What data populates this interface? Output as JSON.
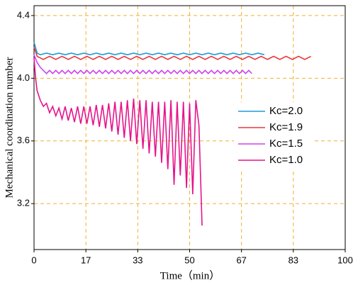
{
  "chart_data": {
    "type": "line",
    "xlabel": "Time（min）",
    "ylabel": "Mechanical coordination number",
    "xlim": [
      0,
      100
    ],
    "ylim": [
      2.907,
      4.463
    ],
    "xticks": [
      0,
      {
        "value": 16.67,
        "label": "17"
      },
      {
        "value": 33.33,
        "label": "33"
      },
      {
        "value": 50,
        "label": "50"
      },
      {
        "value": 66.67,
        "label": "67"
      },
      {
        "value": 83.33,
        "label": "83"
      },
      100
    ],
    "yticks": [
      3.2,
      3.6,
      {
        "value": 4,
        "label": "4.0"
      },
      4.4
    ],
    "grid": true,
    "legend": "right",
    "series": [
      {
        "name": "Kc=2.0",
        "color": "#1e9bd7",
        "x": [
          0,
          1,
          2,
          4,
          6,
          8,
          10,
          12,
          14,
          16,
          18,
          20,
          22,
          24,
          26,
          28,
          30,
          32,
          34,
          36,
          38,
          40,
          42,
          44,
          46,
          48,
          50,
          52,
          54,
          56,
          58,
          60,
          62,
          64,
          66,
          68,
          70,
          72,
          74
        ],
        "values": [
          4.23,
          4.16,
          4.15,
          4.16,
          4.15,
          4.16,
          4.15,
          4.16,
          4.15,
          4.16,
          4.15,
          4.16,
          4.15,
          4.16,
          4.15,
          4.16,
          4.15,
          4.16,
          4.15,
          4.16,
          4.15,
          4.16,
          4.15,
          4.16,
          4.15,
          4.16,
          4.15,
          4.16,
          4.15,
          4.16,
          4.15,
          4.16,
          4.15,
          4.16,
          4.15,
          4.16,
          4.15,
          4.16,
          4.15
        ]
      },
      {
        "name": "Kc=1.9",
        "color": "#e8383d",
        "x": [
          0,
          1,
          3,
          5,
          7,
          9,
          11,
          13,
          15,
          17,
          19,
          21,
          23,
          25,
          27,
          29,
          31,
          33,
          35,
          37,
          39,
          41,
          43,
          45,
          47,
          49,
          51,
          53,
          55,
          57,
          59,
          61,
          63,
          65,
          67,
          69,
          71,
          73,
          75,
          77,
          79,
          81,
          83,
          85,
          87,
          89
        ],
        "values": [
          4.2,
          4.14,
          4.12,
          4.14,
          4.12,
          4.14,
          4.12,
          4.14,
          4.12,
          4.14,
          4.12,
          4.14,
          4.12,
          4.14,
          4.12,
          4.14,
          4.12,
          4.14,
          4.12,
          4.14,
          4.12,
          4.14,
          4.12,
          4.14,
          4.12,
          4.14,
          4.12,
          4.14,
          4.12,
          4.14,
          4.12,
          4.14,
          4.12,
          4.14,
          4.12,
          4.14,
          4.12,
          4.14,
          4.12,
          4.14,
          4.12,
          4.14,
          4.12,
          4.14,
          4.12,
          4.14
        ]
      },
      {
        "name": "Kc=1.5",
        "color": "#cc44ee",
        "x": [
          0,
          1,
          2,
          3,
          4,
          5,
          6,
          7,
          8,
          9,
          10,
          11,
          12,
          13,
          14,
          15,
          16,
          17,
          18,
          19,
          20,
          21,
          22,
          23,
          24,
          25,
          26,
          27,
          28,
          29,
          30,
          31,
          32,
          33,
          34,
          35,
          36,
          37,
          38,
          39,
          40,
          41,
          42,
          43,
          44,
          45,
          46,
          47,
          48,
          49,
          50,
          51,
          52,
          53,
          54,
          55,
          56,
          57,
          58,
          59,
          60,
          61,
          62,
          63,
          64,
          65,
          66,
          67,
          68,
          69,
          70
        ],
        "values": [
          4.15,
          4.1,
          4.07,
          4.05,
          4.03,
          4.05,
          4.03,
          4.05,
          4.03,
          4.05,
          4.03,
          4.05,
          4.03,
          4.05,
          4.03,
          4.05,
          4.03,
          4.05,
          4.03,
          4.05,
          4.03,
          4.05,
          4.03,
          4.05,
          4.03,
          4.05,
          4.03,
          4.05,
          4.03,
          4.05,
          4.03,
          4.05,
          4.03,
          4.05,
          4.03,
          4.05,
          4.03,
          4.05,
          4.03,
          4.05,
          4.03,
          4.05,
          4.03,
          4.05,
          4.03,
          4.05,
          4.03,
          4.05,
          4.03,
          4.05,
          4.03,
          4.05,
          4.03,
          4.05,
          4.03,
          4.05,
          4.03,
          4.05,
          4.03,
          4.05,
          4.03,
          4.05,
          4.03,
          4.05,
          4.03,
          4.05,
          4.03,
          4.05,
          4.03,
          4.05,
          4.03
        ]
      },
      {
        "name": "Kc=1.0",
        "color": "#e6148c",
        "x": [
          0,
          0.5,
          1,
          2,
          3,
          4,
          5,
          6,
          7,
          8,
          9,
          10,
          11,
          12,
          13,
          14,
          15,
          16,
          17,
          18,
          19,
          20,
          21,
          22,
          23,
          24,
          25,
          26,
          27,
          28,
          29,
          30,
          31,
          32,
          33,
          34,
          35,
          36,
          37,
          38,
          39,
          40,
          41,
          42,
          43,
          44,
          45,
          46,
          47,
          48,
          49,
          50,
          51,
          52,
          53,
          54
        ],
        "values": [
          4.13,
          4.0,
          3.92,
          3.86,
          3.82,
          3.84,
          3.78,
          3.82,
          3.76,
          3.81,
          3.74,
          3.82,
          3.73,
          3.81,
          3.72,
          3.82,
          3.71,
          3.82,
          3.71,
          3.82,
          3.7,
          3.83,
          3.69,
          3.83,
          3.68,
          3.84,
          3.66,
          3.85,
          3.64,
          3.85,
          3.62,
          3.86,
          3.6,
          3.87,
          3.58,
          3.86,
          3.55,
          3.86,
          3.52,
          3.85,
          3.5,
          3.85,
          3.46,
          3.85,
          3.42,
          3.86,
          3.32,
          3.85,
          3.38,
          3.85,
          3.3,
          3.84,
          3.26,
          3.86,
          3.7,
          3.06
        ]
      }
    ]
  }
}
